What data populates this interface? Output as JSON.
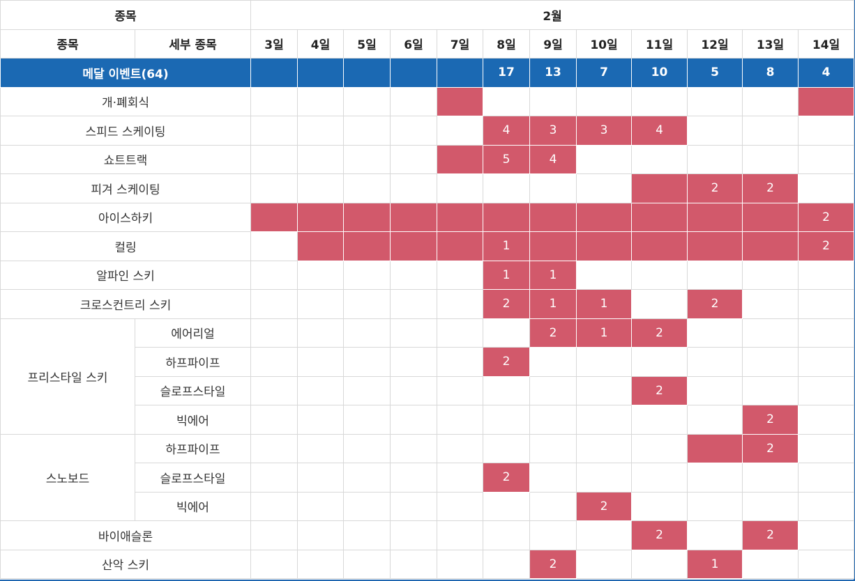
{
  "colors": {
    "header_blue": "#1b69b3",
    "highlight_red": "#d2596b",
    "grid": "#d8d8d8"
  },
  "header": {
    "group_label": "종목",
    "month_label": "2월",
    "col_event": "종목",
    "col_sub_event": "세부 종목",
    "days": [
      "3일",
      "4일",
      "5일",
      "6일",
      "7일",
      "8일",
      "9일",
      "10일",
      "11일",
      "12일",
      "13일",
      "14일"
    ]
  },
  "medal_row": {
    "label": "메달 이벤트(64)",
    "counts": [
      "",
      "",
      "",
      "",
      "",
      "17",
      "13",
      "7",
      "10",
      "5",
      "8",
      "4"
    ]
  },
  "rows": [
    {
      "event": "개·폐회식",
      "sub": null,
      "cells": [
        {
          "hl": false,
          "v": ""
        },
        {
          "hl": false,
          "v": ""
        },
        {
          "hl": false,
          "v": ""
        },
        {
          "hl": false,
          "v": ""
        },
        {
          "hl": true,
          "v": ""
        },
        {
          "hl": false,
          "v": ""
        },
        {
          "hl": false,
          "v": ""
        },
        {
          "hl": false,
          "v": ""
        },
        {
          "hl": false,
          "v": ""
        },
        {
          "hl": false,
          "v": ""
        },
        {
          "hl": false,
          "v": ""
        },
        {
          "hl": true,
          "v": ""
        }
      ]
    },
    {
      "event": "스피드 스케이팅",
      "sub": null,
      "cells": [
        {
          "hl": false,
          "v": ""
        },
        {
          "hl": false,
          "v": ""
        },
        {
          "hl": false,
          "v": ""
        },
        {
          "hl": false,
          "v": ""
        },
        {
          "hl": false,
          "v": ""
        },
        {
          "hl": true,
          "v": "4"
        },
        {
          "hl": true,
          "v": "3"
        },
        {
          "hl": true,
          "v": "3"
        },
        {
          "hl": true,
          "v": "4"
        },
        {
          "hl": false,
          "v": ""
        },
        {
          "hl": false,
          "v": ""
        },
        {
          "hl": false,
          "v": ""
        }
      ]
    },
    {
      "event": "쇼트트랙",
      "sub": null,
      "cells": [
        {
          "hl": false,
          "v": ""
        },
        {
          "hl": false,
          "v": ""
        },
        {
          "hl": false,
          "v": ""
        },
        {
          "hl": false,
          "v": ""
        },
        {
          "hl": true,
          "v": ""
        },
        {
          "hl": true,
          "v": "5"
        },
        {
          "hl": true,
          "v": "4"
        },
        {
          "hl": false,
          "v": ""
        },
        {
          "hl": false,
          "v": ""
        },
        {
          "hl": false,
          "v": ""
        },
        {
          "hl": false,
          "v": ""
        },
        {
          "hl": false,
          "v": ""
        }
      ]
    },
    {
      "event": "피겨 스케이팅",
      "sub": null,
      "cells": [
        {
          "hl": false,
          "v": ""
        },
        {
          "hl": false,
          "v": ""
        },
        {
          "hl": false,
          "v": ""
        },
        {
          "hl": false,
          "v": ""
        },
        {
          "hl": false,
          "v": ""
        },
        {
          "hl": false,
          "v": ""
        },
        {
          "hl": false,
          "v": ""
        },
        {
          "hl": false,
          "v": ""
        },
        {
          "hl": true,
          "v": ""
        },
        {
          "hl": true,
          "v": "2"
        },
        {
          "hl": true,
          "v": "2"
        },
        {
          "hl": false,
          "v": ""
        }
      ]
    },
    {
      "event": "아이스하키",
      "sub": null,
      "cells": [
        {
          "hl": true,
          "v": ""
        },
        {
          "hl": true,
          "v": ""
        },
        {
          "hl": true,
          "v": ""
        },
        {
          "hl": true,
          "v": ""
        },
        {
          "hl": true,
          "v": ""
        },
        {
          "hl": true,
          "v": ""
        },
        {
          "hl": true,
          "v": ""
        },
        {
          "hl": true,
          "v": ""
        },
        {
          "hl": true,
          "v": ""
        },
        {
          "hl": true,
          "v": ""
        },
        {
          "hl": true,
          "v": ""
        },
        {
          "hl": true,
          "v": "2"
        }
      ]
    },
    {
      "event": "컬링",
      "sub": null,
      "cells": [
        {
          "hl": false,
          "v": ""
        },
        {
          "hl": true,
          "v": ""
        },
        {
          "hl": true,
          "v": ""
        },
        {
          "hl": true,
          "v": ""
        },
        {
          "hl": true,
          "v": ""
        },
        {
          "hl": true,
          "v": "1"
        },
        {
          "hl": true,
          "v": ""
        },
        {
          "hl": true,
          "v": ""
        },
        {
          "hl": true,
          "v": ""
        },
        {
          "hl": true,
          "v": ""
        },
        {
          "hl": true,
          "v": ""
        },
        {
          "hl": true,
          "v": "2"
        }
      ]
    },
    {
      "event": "알파인 스키",
      "sub": null,
      "cells": [
        {
          "hl": false,
          "v": ""
        },
        {
          "hl": false,
          "v": ""
        },
        {
          "hl": false,
          "v": ""
        },
        {
          "hl": false,
          "v": ""
        },
        {
          "hl": false,
          "v": ""
        },
        {
          "hl": true,
          "v": "1"
        },
        {
          "hl": true,
          "v": "1"
        },
        {
          "hl": false,
          "v": ""
        },
        {
          "hl": false,
          "v": ""
        },
        {
          "hl": false,
          "v": ""
        },
        {
          "hl": false,
          "v": ""
        },
        {
          "hl": false,
          "v": ""
        }
      ]
    },
    {
      "event": "크로스컨트리 스키",
      "sub": null,
      "cells": [
        {
          "hl": false,
          "v": ""
        },
        {
          "hl": false,
          "v": ""
        },
        {
          "hl": false,
          "v": ""
        },
        {
          "hl": false,
          "v": ""
        },
        {
          "hl": false,
          "v": ""
        },
        {
          "hl": true,
          "v": "2"
        },
        {
          "hl": true,
          "v": "1"
        },
        {
          "hl": true,
          "v": "1"
        },
        {
          "hl": false,
          "v": ""
        },
        {
          "hl": true,
          "v": "2"
        },
        {
          "hl": false,
          "v": ""
        },
        {
          "hl": false,
          "v": ""
        }
      ]
    },
    {
      "event": "프리스타일 스키",
      "sub": "에어리얼",
      "cells": [
        {
          "hl": false,
          "v": ""
        },
        {
          "hl": false,
          "v": ""
        },
        {
          "hl": false,
          "v": ""
        },
        {
          "hl": false,
          "v": ""
        },
        {
          "hl": false,
          "v": ""
        },
        {
          "hl": false,
          "v": ""
        },
        {
          "hl": true,
          "v": "2"
        },
        {
          "hl": true,
          "v": "1"
        },
        {
          "hl": true,
          "v": "2"
        },
        {
          "hl": false,
          "v": ""
        },
        {
          "hl": false,
          "v": ""
        },
        {
          "hl": false,
          "v": ""
        }
      ]
    },
    {
      "event": "프리스타일 스키",
      "sub": "하프파이프",
      "cells": [
        {
          "hl": false,
          "v": ""
        },
        {
          "hl": false,
          "v": ""
        },
        {
          "hl": false,
          "v": ""
        },
        {
          "hl": false,
          "v": ""
        },
        {
          "hl": false,
          "v": ""
        },
        {
          "hl": true,
          "v": "2"
        },
        {
          "hl": false,
          "v": ""
        },
        {
          "hl": false,
          "v": ""
        },
        {
          "hl": false,
          "v": ""
        },
        {
          "hl": false,
          "v": ""
        },
        {
          "hl": false,
          "v": ""
        },
        {
          "hl": false,
          "v": ""
        }
      ]
    },
    {
      "event": "프리스타일 스키",
      "sub": "슬로프스타일",
      "cells": [
        {
          "hl": false,
          "v": ""
        },
        {
          "hl": false,
          "v": ""
        },
        {
          "hl": false,
          "v": ""
        },
        {
          "hl": false,
          "v": ""
        },
        {
          "hl": false,
          "v": ""
        },
        {
          "hl": false,
          "v": ""
        },
        {
          "hl": false,
          "v": ""
        },
        {
          "hl": false,
          "v": ""
        },
        {
          "hl": true,
          "v": "2"
        },
        {
          "hl": false,
          "v": ""
        },
        {
          "hl": false,
          "v": ""
        },
        {
          "hl": false,
          "v": ""
        }
      ]
    },
    {
      "event": "프리스타일 스키",
      "sub": "빅에어",
      "cells": [
        {
          "hl": false,
          "v": ""
        },
        {
          "hl": false,
          "v": ""
        },
        {
          "hl": false,
          "v": ""
        },
        {
          "hl": false,
          "v": ""
        },
        {
          "hl": false,
          "v": ""
        },
        {
          "hl": false,
          "v": ""
        },
        {
          "hl": false,
          "v": ""
        },
        {
          "hl": false,
          "v": ""
        },
        {
          "hl": false,
          "v": ""
        },
        {
          "hl": false,
          "v": ""
        },
        {
          "hl": true,
          "v": "2"
        },
        {
          "hl": false,
          "v": ""
        }
      ]
    },
    {
      "event": "스노보드",
      "sub": "하프파이프",
      "cells": [
        {
          "hl": false,
          "v": ""
        },
        {
          "hl": false,
          "v": ""
        },
        {
          "hl": false,
          "v": ""
        },
        {
          "hl": false,
          "v": ""
        },
        {
          "hl": false,
          "v": ""
        },
        {
          "hl": false,
          "v": ""
        },
        {
          "hl": false,
          "v": ""
        },
        {
          "hl": false,
          "v": ""
        },
        {
          "hl": false,
          "v": ""
        },
        {
          "hl": true,
          "v": ""
        },
        {
          "hl": true,
          "v": "2"
        },
        {
          "hl": false,
          "v": ""
        }
      ]
    },
    {
      "event": "스노보드",
      "sub": "슬로프스타일",
      "cells": [
        {
          "hl": false,
          "v": ""
        },
        {
          "hl": false,
          "v": ""
        },
        {
          "hl": false,
          "v": ""
        },
        {
          "hl": false,
          "v": ""
        },
        {
          "hl": false,
          "v": ""
        },
        {
          "hl": true,
          "v": "2"
        },
        {
          "hl": false,
          "v": ""
        },
        {
          "hl": false,
          "v": ""
        },
        {
          "hl": false,
          "v": ""
        },
        {
          "hl": false,
          "v": ""
        },
        {
          "hl": false,
          "v": ""
        },
        {
          "hl": false,
          "v": ""
        }
      ]
    },
    {
      "event": "스노보드",
      "sub": "빅에어",
      "cells": [
        {
          "hl": false,
          "v": ""
        },
        {
          "hl": false,
          "v": ""
        },
        {
          "hl": false,
          "v": ""
        },
        {
          "hl": false,
          "v": ""
        },
        {
          "hl": false,
          "v": ""
        },
        {
          "hl": false,
          "v": ""
        },
        {
          "hl": false,
          "v": ""
        },
        {
          "hl": true,
          "v": "2"
        },
        {
          "hl": false,
          "v": ""
        },
        {
          "hl": false,
          "v": ""
        },
        {
          "hl": false,
          "v": ""
        },
        {
          "hl": false,
          "v": ""
        }
      ]
    },
    {
      "event": "바이애슬론",
      "sub": null,
      "cells": [
        {
          "hl": false,
          "v": ""
        },
        {
          "hl": false,
          "v": ""
        },
        {
          "hl": false,
          "v": ""
        },
        {
          "hl": false,
          "v": ""
        },
        {
          "hl": false,
          "v": ""
        },
        {
          "hl": false,
          "v": ""
        },
        {
          "hl": false,
          "v": ""
        },
        {
          "hl": false,
          "v": ""
        },
        {
          "hl": true,
          "v": "2"
        },
        {
          "hl": false,
          "v": ""
        },
        {
          "hl": true,
          "v": "2"
        },
        {
          "hl": false,
          "v": ""
        }
      ]
    },
    {
      "event": "산악 스키",
      "sub": null,
      "cells": [
        {
          "hl": false,
          "v": ""
        },
        {
          "hl": false,
          "v": ""
        },
        {
          "hl": false,
          "v": ""
        },
        {
          "hl": false,
          "v": ""
        },
        {
          "hl": false,
          "v": ""
        },
        {
          "hl": false,
          "v": ""
        },
        {
          "hl": true,
          "v": "2"
        },
        {
          "hl": false,
          "v": ""
        },
        {
          "hl": false,
          "v": ""
        },
        {
          "hl": true,
          "v": "1"
        },
        {
          "hl": false,
          "v": ""
        },
        {
          "hl": false,
          "v": ""
        }
      ]
    }
  ]
}
